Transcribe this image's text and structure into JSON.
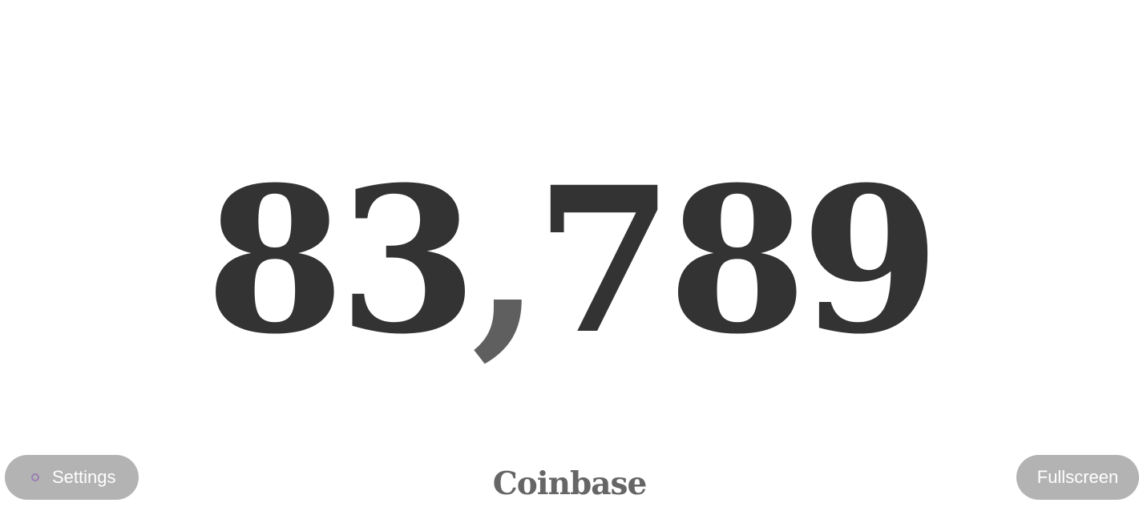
{
  "counter": {
    "thousands": "83",
    "separator": ",",
    "remainder": "789"
  },
  "brand": "Coinbase",
  "buttons": {
    "settings_label": "Settings",
    "settings_icon": "circle-icon",
    "fullscreen_label": "Fullscreen"
  },
  "colors": {
    "counter": "#333333",
    "brand": "#666666",
    "button_bg": "#b3b3b3",
    "button_text": "#ffffff",
    "icon_ring": "#9a7fb3"
  }
}
